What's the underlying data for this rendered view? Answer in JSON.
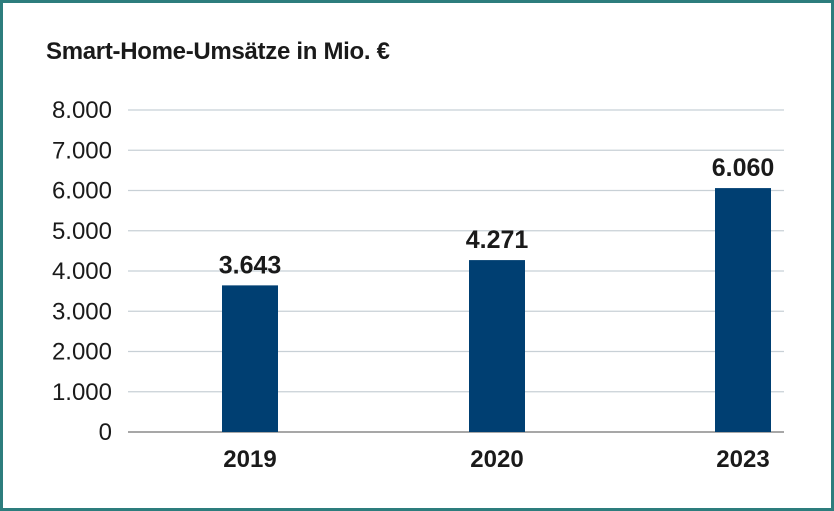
{
  "chart_data": {
    "type": "bar",
    "title": "Smart-Home-Umsätze in Mio. €",
    "xlabel": "",
    "ylabel": "",
    "categories": [
      "2019",
      "2020",
      "2023"
    ],
    "values": [
      3643,
      4271,
      6060
    ],
    "data_labels": [
      "3.643",
      "4.271",
      "6.060"
    ],
    "ylim": [
      0,
      8000
    ],
    "yticks": [
      0,
      1000,
      2000,
      3000,
      4000,
      5000,
      6000,
      7000,
      8000
    ],
    "ytick_labels": [
      "0",
      "1.000",
      "2.000",
      "3.000",
      "4.000",
      "5.000",
      "6.000",
      "7.000",
      "8.000"
    ],
    "grid": true,
    "legend": "none",
    "colors": {
      "bar": "#003f72",
      "grid": "#c8d0d6",
      "axis": "#8a8a8a",
      "frame": "#2d7d7d"
    }
  }
}
